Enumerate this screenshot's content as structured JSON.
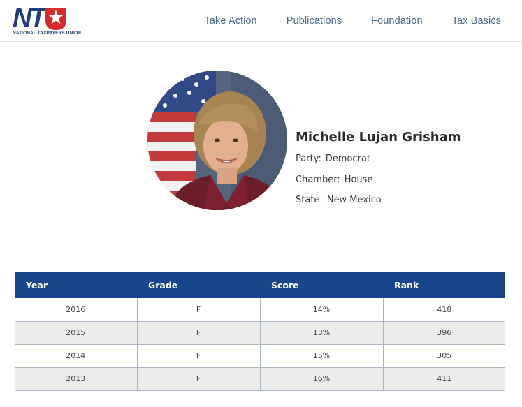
{
  "header": {
    "logo": {
      "letters": "NT",
      "subtitle": "NATIONAL TAXPAYERS UNION"
    },
    "nav": [
      "Take Action",
      "Publications",
      "Foundation",
      "Tax Basics"
    ]
  },
  "profile": {
    "name": "Michelle Lujan Grisham",
    "party_label": "Party:",
    "party": "Democrat",
    "chamber_label": "Chamber:",
    "chamber": "House",
    "state_label": "State:",
    "state": "New Mexico"
  },
  "table": {
    "columns": [
      "Year",
      "Grade",
      "Score",
      "Rank"
    ],
    "rows": [
      [
        "2016",
        "F",
        "14%",
        "418"
      ],
      [
        "2015",
        "F",
        "13%",
        "396"
      ],
      [
        "2014",
        "F",
        "15%",
        "305"
      ],
      [
        "2013",
        "F",
        "16%",
        "411"
      ]
    ]
  },
  "colors": {
    "brand_navy": "#1e3f7a",
    "logo_red": "#d52b2b",
    "table_header": "#17478a",
    "nav_text": "#4a6a8f",
    "row_alt": "#ececec"
  }
}
